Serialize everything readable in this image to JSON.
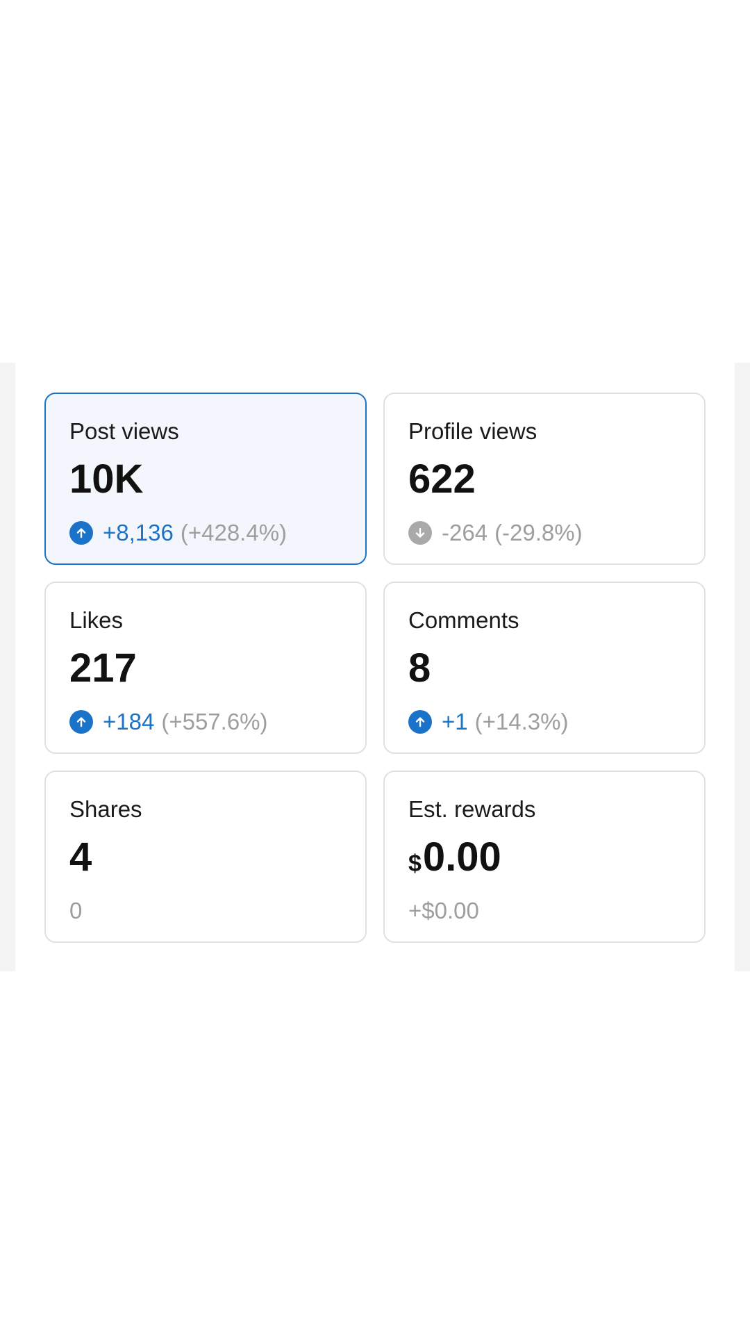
{
  "colors": {
    "accent": "#1a73c8",
    "muted": "#9e9e9e",
    "selected_bg": "#f3f7fd",
    "border": "#e0e0e0"
  },
  "stats": {
    "post_views": {
      "label": "Post views",
      "value": "10K",
      "delta": "+8,136",
      "pct": "(+428.4%)",
      "trend_icon": "arrow-up-circle-icon",
      "selected": true
    },
    "profile_views": {
      "label": "Profile views",
      "value": "622",
      "delta": "-264",
      "pct": "(-29.8%)",
      "trend_icon": "arrow-down-circle-icon"
    },
    "likes": {
      "label": "Likes",
      "value": "217",
      "delta": "+184",
      "pct": "(+557.6%)",
      "trend_icon": "arrow-up-circle-icon"
    },
    "comments": {
      "label": "Comments",
      "value": "8",
      "delta": "+1",
      "pct": "(+14.3%)",
      "trend_icon": "arrow-up-circle-icon"
    },
    "shares": {
      "label": "Shares",
      "value": "4",
      "change": "0"
    },
    "est_rewards": {
      "label": "Est. rewards",
      "currency": "$",
      "value": "0.00",
      "change": "+$0.00"
    }
  }
}
